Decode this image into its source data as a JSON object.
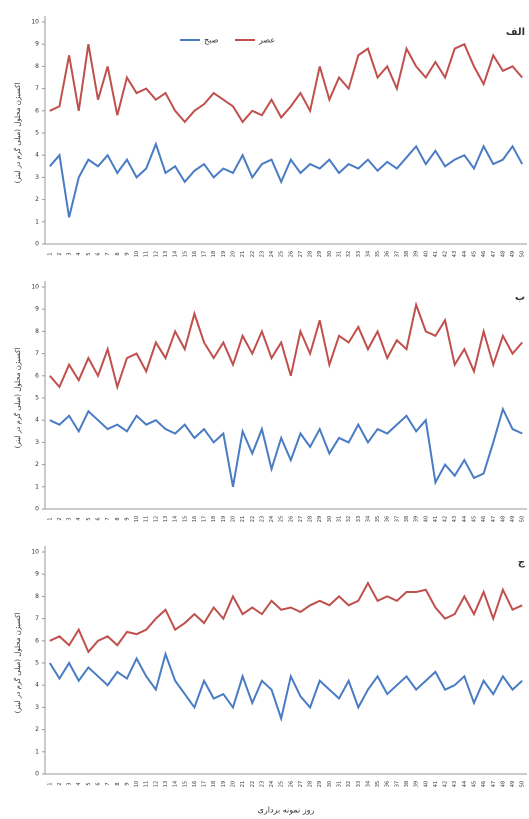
{
  "chart_data": [
    {
      "type": "line",
      "panel_label": "الف",
      "ylabel": "اکسیژن محلول (میلی گرم در لیتر)",
      "ylim": [
        0,
        10
      ],
      "yticks": [
        0,
        1,
        2,
        3,
        4,
        5,
        6,
        7,
        8,
        9,
        10
      ],
      "legend": "top-center",
      "categories": [
        1,
        2,
        3,
        4,
        5,
        6,
        7,
        8,
        9,
        10,
        11,
        12,
        13,
        14,
        15,
        16,
        17,
        18,
        19,
        20,
        21,
        22,
        23,
        24,
        25,
        26,
        27,
        28,
        29,
        30,
        31,
        32,
        33,
        34,
        35,
        36,
        37,
        38,
        39,
        40,
        41,
        42,
        43,
        44,
        45,
        46,
        47,
        48,
        49,
        50
      ],
      "series": [
        {
          "name": "صبح",
          "color": "#4a7cc4",
          "values": [
            3.5,
            4,
            1.2,
            3,
            3.8,
            3.5,
            4,
            3.2,
            3.8,
            3,
            3.4,
            4.5,
            3.2,
            3.5,
            2.8,
            3.3,
            3.6,
            3,
            3.4,
            3.2,
            4,
            3,
            3.6,
            3.8,
            2.8,
            3.8,
            3.2,
            3.6,
            3.4,
            3.8,
            3.2,
            3.6,
            3.4,
            3.8,
            3.3,
            3.7,
            3.4,
            3.9,
            4.4,
            3.6,
            4.2,
            3.5,
            3.8,
            4,
            3.4,
            4.4,
            3.6,
            3.8,
            4.4,
            3.6
          ]
        },
        {
          "name": "عصر",
          "color": "#c0504d",
          "values": [
            6,
            6.2,
            8.5,
            6,
            9,
            6.5,
            8,
            5.8,
            7.5,
            6.8,
            7,
            6.5,
            6.8,
            6,
            5.5,
            6,
            6.3,
            6.8,
            6.5,
            6.2,
            5.5,
            6,
            5.8,
            6.5,
            5.7,
            6.2,
            6.8,
            6,
            8,
            6.5,
            7.5,
            7,
            8.5,
            8.8,
            7.5,
            8,
            7,
            8.8,
            8,
            7.5,
            8.2,
            7.5,
            8.8,
            9,
            8,
            7.2,
            8.5,
            7.8,
            8,
            7.5
          ]
        }
      ]
    },
    {
      "type": "line",
      "panel_label": "ب",
      "ylabel": "اکسیژن محلول (میلی گرم در لیتر)",
      "ylim": [
        0,
        10
      ],
      "yticks": [
        0,
        1,
        2,
        3,
        4,
        5,
        6,
        7,
        8,
        9,
        10
      ],
      "categories": [
        1,
        2,
        3,
        4,
        5,
        6,
        7,
        8,
        9,
        10,
        11,
        12,
        13,
        14,
        15,
        16,
        17,
        18,
        19,
        20,
        21,
        22,
        23,
        24,
        25,
        26,
        27,
        28,
        29,
        30,
        31,
        32,
        33,
        34,
        35,
        36,
        37,
        38,
        39,
        40,
        41,
        42,
        43,
        44,
        45,
        46,
        47,
        48,
        49,
        50
      ],
      "series": [
        {
          "color": "#4a7cc4",
          "values": [
            4,
            3.8,
            4.2,
            3.5,
            4.4,
            4,
            3.6,
            3.8,
            3.5,
            4.2,
            3.8,
            4,
            3.6,
            3.4,
            3.8,
            3.2,
            3.6,
            3,
            3.4,
            1,
            3.5,
            2.5,
            3.6,
            1.8,
            3.2,
            2.2,
            3.4,
            2.8,
            3.6,
            2.5,
            3.2,
            3,
            3.8,
            3,
            3.6,
            3.4,
            3.8,
            4.2,
            3.5,
            4,
            1.2,
            2,
            1.5,
            2.2,
            1.4,
            1.6,
            3,
            4.5,
            3.6,
            3.4
          ]
        },
        {
          "color": "#c0504d",
          "values": [
            6,
            5.5,
            6.5,
            5.8,
            6.8,
            6,
            7.2,
            5.5,
            6.8,
            7,
            6.2,
            7.5,
            6.8,
            8,
            7.2,
            8.8,
            7.5,
            6.8,
            7.5,
            6.5,
            7.8,
            7,
            8,
            6.8,
            7.5,
            6,
            8,
            7,
            8.5,
            6.5,
            7.8,
            7.5,
            8.2,
            7.2,
            8,
            6.8,
            7.6,
            7.2,
            9.2,
            8,
            7.8,
            8.5,
            6.5,
            7.2,
            6.2,
            8,
            6.5,
            7.8,
            7,
            7.5
          ]
        }
      ]
    },
    {
      "type": "line",
      "panel_label": "ج",
      "ylabel": "اکسیژن محلول (میلی گرم در لیتر)",
      "xlabel": "روز نمونه برداری",
      "ylim": [
        0,
        10
      ],
      "yticks": [
        0,
        1,
        2,
        3,
        4,
        5,
        6,
        7,
        8,
        9,
        10
      ],
      "categories": [
        1,
        2,
        3,
        4,
        5,
        6,
        7,
        8,
        9,
        10,
        11,
        12,
        13,
        14,
        15,
        16,
        17,
        18,
        19,
        20,
        21,
        22,
        23,
        24,
        25,
        26,
        27,
        28,
        29,
        30,
        31,
        32,
        33,
        34,
        35,
        36,
        37,
        38,
        39,
        40,
        41,
        42,
        43,
        44,
        45,
        46,
        47,
        48,
        49,
        50
      ],
      "series": [
        {
          "color": "#4a7cc4",
          "values": [
            5,
            4.3,
            5,
            4.2,
            4.8,
            4.4,
            4,
            4.6,
            4.3,
            5.2,
            4.4,
            3.8,
            5.4,
            4.2,
            3.6,
            3,
            4.2,
            3.4,
            3.6,
            3,
            4.4,
            3.2,
            4.2,
            3.8,
            2.5,
            4.4,
            3.5,
            3,
            4.2,
            3.8,
            3.4,
            4.2,
            3,
            3.8,
            4.4,
            3.6,
            4,
            4.4,
            3.8,
            4.2,
            4.6,
            3.8,
            4,
            4.4,
            3.2,
            4.2,
            3.6,
            4.4,
            3.8,
            4.2
          ]
        },
        {
          "color": "#c0504d",
          "values": [
            6,
            6.2,
            5.8,
            6.5,
            5.5,
            6,
            6.2,
            5.8,
            6.4,
            6.3,
            6.5,
            7,
            7.4,
            6.5,
            6.8,
            7.2,
            6.8,
            7.5,
            7,
            8,
            7.2,
            7.5,
            7.2,
            7.8,
            7.4,
            7.5,
            7.3,
            7.6,
            7.8,
            7.6,
            8,
            7.6,
            7.8,
            8.6,
            7.8,
            8,
            7.8,
            8.2,
            8.2,
            8.3,
            7.5,
            7,
            7.2,
            8,
            7.2,
            8.2,
            7,
            8.3,
            7.4,
            7.6
          ]
        }
      ]
    }
  ]
}
